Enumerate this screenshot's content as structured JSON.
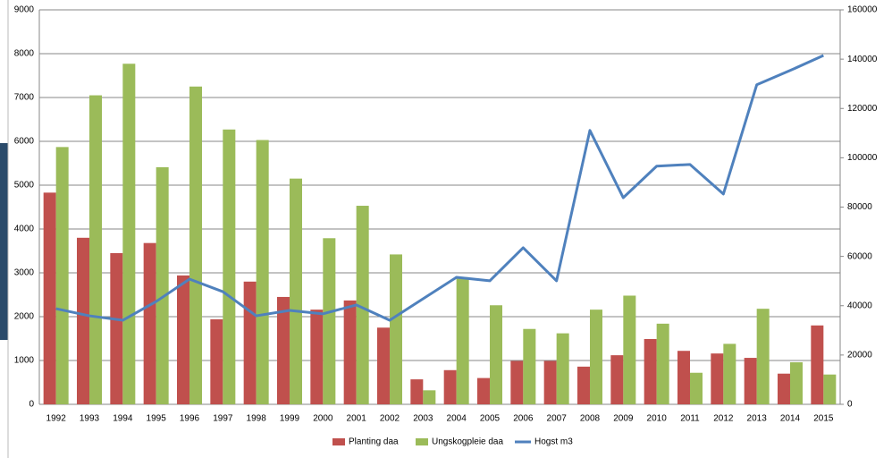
{
  "chart_data": {
    "type": "bar",
    "categories": [
      "1992",
      "1993",
      "1994",
      "1995",
      "1996",
      "1997",
      "1998",
      "1999",
      "2000",
      "2001",
      "2002",
      "2003",
      "2004",
      "2005",
      "2006",
      "2007",
      "2008",
      "2009",
      "2010",
      "2011",
      "2012",
      "2013",
      "2014",
      "2015"
    ],
    "series": [
      {
        "name": "Planting daa",
        "color": "#c0504d",
        "values": [
          4830,
          3800,
          3450,
          3680,
          2940,
          1940,
          2800,
          2450,
          2160,
          2370,
          1750,
          570,
          780,
          600,
          990,
          990,
          860,
          1120,
          1490,
          1220,
          1160,
          1060,
          700,
          1800
        ]
      },
      {
        "name": "Ungskogpleie daa",
        "color": "#9bbb59",
        "values": [
          5870,
          7050,
          7770,
          5410,
          7250,
          6270,
          6030,
          5150,
          3790,
          4530,
          3420,
          320,
          2900,
          2260,
          1720,
          1620,
          2160,
          2480,
          1840,
          720,
          1380,
          2180,
          960,
          680
        ]
      },
      {
        "name": "Hogst m3",
        "color": "#4f81bd",
        "type": "line",
        "axis": "y2",
        "values": [
          38800,
          35900,
          34100,
          41700,
          50800,
          45700,
          35900,
          38100,
          36700,
          40300,
          34100,
          42800,
          51500,
          50100,
          63500,
          50100,
          111100,
          83800,
          96600,
          97300,
          85300,
          129600,
          135400,
          141500
        ]
      }
    ],
    "ylim": [
      0,
      9000
    ],
    "yticks": [
      0,
      1000,
      2000,
      3000,
      4000,
      5000,
      6000,
      7000,
      8000,
      9000
    ],
    "y2lim": [
      0,
      160000
    ],
    "y2ticks": [
      0,
      20000,
      40000,
      60000,
      80000,
      100000,
      120000,
      140000,
      160000
    ],
    "grid": true,
    "legend": "bottom"
  }
}
